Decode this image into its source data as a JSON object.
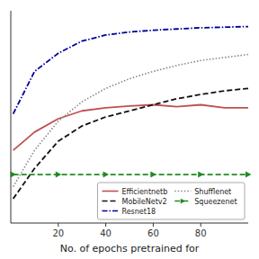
{
  "chart_data": {
    "type": "line",
    "xlabel": "No. of epochs pretrained for",
    "x": [
      1,
      10,
      20,
      30,
      40,
      50,
      60,
      70,
      80,
      90,
      100
    ],
    "series": [
      {
        "name": "Efficientnetb",
        "color": "#c05050",
        "line_style": "solid",
        "values": [
          0.62,
          0.65,
          0.672,
          0.685,
          0.69,
          0.693,
          0.695,
          0.692,
          0.695,
          0.69,
          0.69
        ]
      },
      {
        "name": "MobileNetv2",
        "color": "#111111",
        "line_style": "dashed",
        "values": [
          0.54,
          0.59,
          0.635,
          0.66,
          0.675,
          0.685,
          0.695,
          0.705,
          0.712,
          0.718,
          0.722
        ]
      },
      {
        "name": "Resnet18",
        "color": "#000099",
        "line_style": "dashdot",
        "values": [
          0.68,
          0.75,
          0.78,
          0.8,
          0.81,
          0.815,
          0.818,
          0.82,
          0.822,
          0.823,
          0.824
        ]
      },
      {
        "name": "Shufflenet",
        "color": "#888888",
        "line_style": "dotted",
        "values": [
          0.56,
          0.62,
          0.668,
          0.7,
          0.722,
          0.738,
          0.75,
          0.76,
          0.768,
          0.773,
          0.778
        ]
      },
      {
        "name": "Squeezenet",
        "color": "#228B22",
        "line_style": "dashed",
        "marker": "triangle-right",
        "values": [
          0.58,
          0.58,
          0.58,
          0.58,
          0.58,
          0.58,
          0.58,
          0.58,
          0.58,
          0.58,
          0.58
        ]
      }
    ],
    "xlim": [
      0,
      100
    ],
    "ylim": [
      0.5,
      0.85
    ],
    "xticks": [
      20,
      40,
      60,
      80
    ],
    "tick_labels": "x",
    "grid": false,
    "legend": "lower right"
  }
}
